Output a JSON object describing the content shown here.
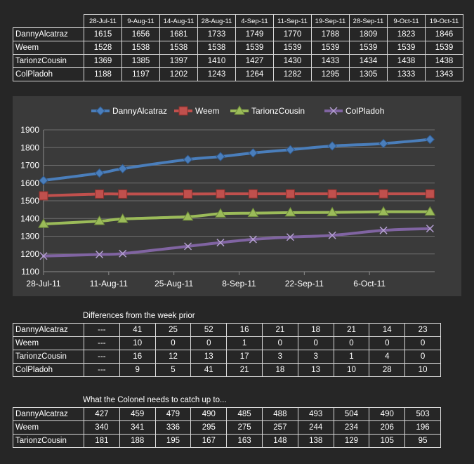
{
  "table_top": {
    "dates": [
      "28-Jul-11",
      "9-Aug-11",
      "14-Aug-11",
      "28-Aug-11",
      "4-Sep-11",
      "11-Sep-11",
      "19-Sep-11",
      "28-Sep-11",
      "9-Oct-11",
      "19-Oct-11"
    ],
    "rows": [
      {
        "name": "DannyAlcatraz",
        "values": [
          "1615",
          "1656",
          "1681",
          "1733",
          "1749",
          "1770",
          "1788",
          "1809",
          "1823",
          "1846"
        ]
      },
      {
        "name": "Weem",
        "values": [
          "1528",
          "1538",
          "1538",
          "1538",
          "1539",
          "1539",
          "1539",
          "1539",
          "1539",
          "1539"
        ]
      },
      {
        "name": "TarionzCousin",
        "values": [
          "1369",
          "1385",
          "1397",
          "1410",
          "1427",
          "1430",
          "1433",
          "1434",
          "1438",
          "1438"
        ]
      },
      {
        "name": "ColPladoh",
        "values": [
          "1188",
          "1197",
          "1202",
          "1243",
          "1264",
          "1282",
          "1295",
          "1305",
          "1333",
          "1343"
        ]
      }
    ]
  },
  "table_diff": {
    "caption": "Differences from the week prior",
    "rows": [
      {
        "name": "DannyAlcatraz",
        "values": [
          "---",
          "41",
          "25",
          "52",
          "16",
          "21",
          "18",
          "21",
          "14",
          "23"
        ]
      },
      {
        "name": "Weem",
        "values": [
          "---",
          "10",
          "0",
          "0",
          "1",
          "0",
          "0",
          "0",
          "0",
          "0"
        ]
      },
      {
        "name": "TarionzCousin",
        "values": [
          "---",
          "16",
          "12",
          "13",
          "17",
          "3",
          "3",
          "1",
          "4",
          "0"
        ]
      },
      {
        "name": "ColPladoh",
        "values": [
          "---",
          "9",
          "5",
          "41",
          "21",
          "18",
          "13",
          "10",
          "28",
          "10"
        ]
      }
    ]
  },
  "table_catch": {
    "caption": "What the Colonel needs to catch up to...",
    "rows": [
      {
        "name": "DannyAlcatraz",
        "values": [
          "427",
          "459",
          "479",
          "490",
          "485",
          "488",
          "493",
          "504",
          "490",
          "503"
        ]
      },
      {
        "name": "Weem",
        "values": [
          "340",
          "341",
          "336",
          "295",
          "275",
          "257",
          "244",
          "234",
          "206",
          "196"
        ]
      },
      {
        "name": "TarionzCousin",
        "values": [
          "181",
          "188",
          "195",
          "167",
          "163",
          "148",
          "138",
          "129",
          "105",
          "95"
        ]
      }
    ]
  },
  "chart_data": {
    "type": "line",
    "x": [
      "2011-07-28",
      "2011-08-09",
      "2011-08-14",
      "2011-08-28",
      "2011-09-04",
      "2011-09-11",
      "2011-09-19",
      "2011-09-28",
      "2011-10-09",
      "2011-10-19"
    ],
    "x_ticks": [
      "2011-07-28",
      "2011-08-11",
      "2011-08-25",
      "2011-09-08",
      "2011-09-22",
      "2011-10-06"
    ],
    "x_tick_labels": [
      "28-Jul-11",
      "11-Aug-11",
      "25-Aug-11",
      "8-Sep-11",
      "22-Sep-11",
      "6-Oct-11"
    ],
    "xlim": [
      "2011-07-28",
      "2011-10-20"
    ],
    "ylim": [
      1100,
      1900
    ],
    "y_ticks": [
      1100,
      1200,
      1300,
      1400,
      1500,
      1600,
      1700,
      1800,
      1900
    ],
    "grid": true,
    "legend": "top",
    "series": [
      {
        "name": "DannyAlcatraz",
        "color": "#4a7ebb",
        "marker": "diamond",
        "values": [
          1615,
          1656,
          1681,
          1733,
          1749,
          1770,
          1788,
          1809,
          1823,
          1846
        ]
      },
      {
        "name": "Weem",
        "color": "#c0504d",
        "marker": "square",
        "values": [
          1528,
          1538,
          1538,
          1538,
          1539,
          1539,
          1539,
          1539,
          1539,
          1539
        ]
      },
      {
        "name": "TarionzCousin",
        "color": "#9bbb59",
        "marker": "triangle",
        "values": [
          1369,
          1385,
          1397,
          1410,
          1427,
          1430,
          1433,
          1434,
          1438,
          1438
        ]
      },
      {
        "name": "ColPladoh",
        "color": "#8064a2",
        "marker": "x",
        "values": [
          1188,
          1197,
          1202,
          1243,
          1264,
          1282,
          1295,
          1305,
          1333,
          1343
        ]
      }
    ]
  }
}
